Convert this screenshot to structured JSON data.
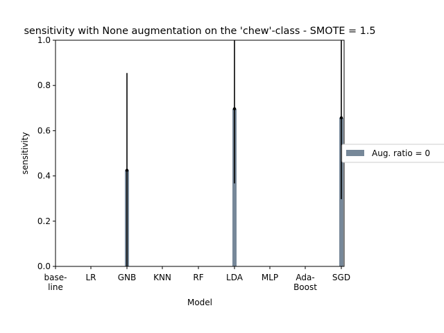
{
  "chart_data": {
    "type": "bar",
    "title": "sensitivity with None augmentation on the 'chew'-class - SMOTE = 1.5",
    "xlabel": "Model",
    "ylabel": "sensitivity",
    "ylim": [
      0,
      1.0
    ],
    "yticks": [
      "0.0",
      "0.2",
      "0.4",
      "0.6",
      "0.8",
      "1.0"
    ],
    "categories": [
      [
        "base-",
        "line"
      ],
      [
        "LR"
      ],
      [
        "GNB"
      ],
      [
        "KNN"
      ],
      [
        "RF"
      ],
      [
        "LDA"
      ],
      [
        "MLP"
      ],
      [
        "Ada-",
        "Boost"
      ],
      [
        "SGD"
      ]
    ],
    "series": [
      {
        "name": "Aug. ratio = 0",
        "color": "#778899",
        "values": [
          0,
          0,
          0.425,
          0,
          0,
          0.697,
          0,
          0,
          0.657
        ],
        "error": [
          0,
          0,
          0.43,
          0,
          0,
          0.33,
          0,
          0,
          0.36
        ]
      }
    ],
    "legend_position": "center-right-outside",
    "grid": false
  }
}
